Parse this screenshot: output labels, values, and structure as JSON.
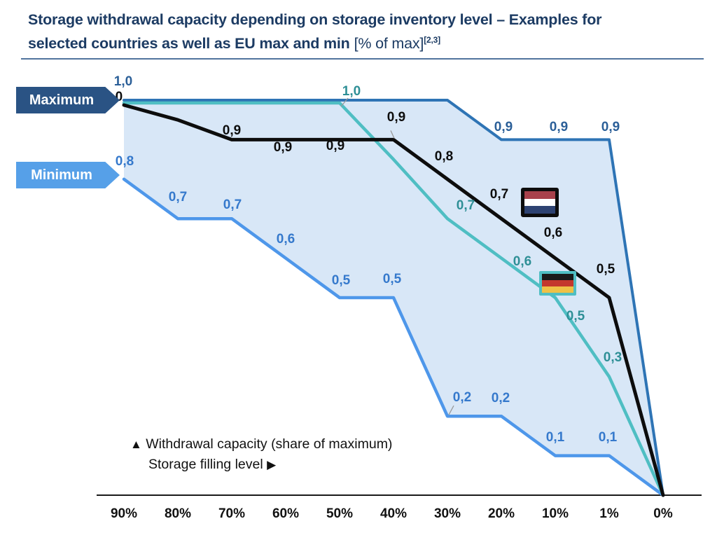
{
  "title": {
    "line1": "Storage withdrawal capacity depending on storage inventory level – Examples for",
    "line2_bold": "selected countries as well as EU max and min",
    "line2_note": "[% of max]",
    "line2_superscript": "[2,3]"
  },
  "callouts": {
    "maximum": {
      "label": "Maximum",
      "color": "#2A5384"
    },
    "minimum": {
      "label": "Minimum",
      "color": "#56A0E8"
    }
  },
  "legend": {
    "up_marker": "▲",
    "line1": "Withdrawal capacity (share of maximum)",
    "line2": "Storage filling level",
    "right_marker": "▶"
  },
  "chart_data": {
    "type": "line",
    "title": "Storage withdrawal capacity depending on storage inventory level – Examples for selected countries as well as EU max and min [% of max]",
    "footnote_ref": "[2,3]",
    "xlabel": "Storage filling level",
    "ylabel": "Withdrawal capacity (share of maximum)",
    "categories": [
      "90%",
      "80%",
      "70%",
      "60%",
      "50%",
      "40%",
      "30%",
      "20%",
      "10%",
      "1%",
      "0%"
    ],
    "ylim": [
      0,
      1
    ],
    "grid": false,
    "decimal_style": "comma",
    "band_fill": "#D8E7F7",
    "axis_color": "#1A1A1A",
    "leader_color": "#999999",
    "series": [
      {
        "name": "EU maximum",
        "color": "#2E74B5",
        "width": 4,
        "label_color": "#2B5F98",
        "values": [
          1.0,
          1.0,
          1.0,
          1.0,
          1.0,
          1.0,
          1.0,
          0.9,
          0.9,
          0.9,
          0.0
        ],
        "labels": [
          "1,0",
          "",
          "",
          "",
          "",
          "",
          "",
          "0,9",
          "0,9",
          "0,9",
          ""
        ],
        "label_offsets": {
          "0": [
            -1,
            -26
          ],
          "7": [
            3,
            -17
          ],
          "8": [
            5,
            -17
          ],
          "9": [
            2,
            -17
          ]
        },
        "leaders": []
      },
      {
        "name": "EU minimum",
        "color": "#4E97EA",
        "width": 4.5,
        "label_color": "#3579CC",
        "values": [
          0.8,
          0.7,
          0.7,
          0.6,
          0.5,
          0.5,
          0.2,
          0.2,
          0.1,
          0.1,
          0.0
        ],
        "labels": [
          "0,8",
          "0,7",
          "0,7",
          "0,6",
          "0,5",
          "0,5",
          "0,2",
          "0,2",
          "0,1",
          "0,1",
          ""
        ],
        "label_offsets": {
          "0": [
            1,
            -25
          ],
          "1": [
            0,
            -30
          ],
          "2": [
            1,
            -19
          ],
          "3": [
            0,
            -27
          ],
          "4": [
            2,
            -24
          ],
          "5": [
            -2,
            -26
          ],
          "6": [
            21,
            -26
          ],
          "7": [
            -1,
            -25
          ],
          "8": [
            0,
            -26
          ],
          "9": [
            -2,
            -26
          ]
        },
        "leaders": [
          {
            "i": 6,
            "from": [
              9,
              -15
            ],
            "to": [
              2,
              -2
            ]
          }
        ]
      },
      {
        "name": "Germany",
        "color": "#4FBEC3",
        "width": 4.5,
        "label_color": "#2E8F96",
        "max_nudge": 4,
        "values": [
          1.0,
          1.0,
          1.0,
          1.0,
          1.0,
          0.85,
          0.7,
          0.6,
          0.5,
          0.3,
          0.0
        ],
        "labels": [
          "",
          "",
          "",
          "",
          "1,0",
          "",
          "0,7",
          "0,6",
          "0,5",
          "0,3",
          ""
        ],
        "label_offsets": {
          "4": [
            17,
            -16
          ],
          "6": [
            26,
            -18
          ],
          "7": [
            30,
            5
          ],
          "8": [
            29,
            27
          ],
          "9": [
            5,
            -27
          ]
        },
        "leaders": [
          {
            "i": 4,
            "from": [
              12,
              -7
            ],
            "to": [
              2,
              5
            ]
          }
        ]
      },
      {
        "name": "Netherlands",
        "color": "#0D0D0D",
        "width": 5,
        "label_color": "#0D0D0D",
        "max_nudge": 7,
        "values": [
          1.0,
          0.95,
          0.9,
          0.9,
          0.9,
          0.9,
          0.8,
          0.7,
          0.6,
          0.5,
          0.0
        ],
        "labels": [
          "1,0",
          "",
          "0,9",
          "0,9",
          "0,9",
          "0,9",
          "0,8",
          "0,7",
          "0,6",
          "0,5",
          ""
        ],
        "label_offsets": {
          "0": [
            -15,
            -11
          ],
          "2": [
            0,
            -12
          ],
          "3": [
            -4,
            12
          ],
          "4": [
            -6,
            10
          ],
          "5": [
            4,
            -31
          ],
          "6": [
            -5,
            -32
          ],
          "7": [
            -3,
            -34
          ],
          "8": [
            -3,
            -36
          ],
          "9": [
            -5,
            -40
          ]
        },
        "leaders": [
          {
            "i": 5,
            "from": [
              -4,
              -13
            ],
            "to": [
              1,
              -2
            ]
          }
        ]
      }
    ]
  }
}
